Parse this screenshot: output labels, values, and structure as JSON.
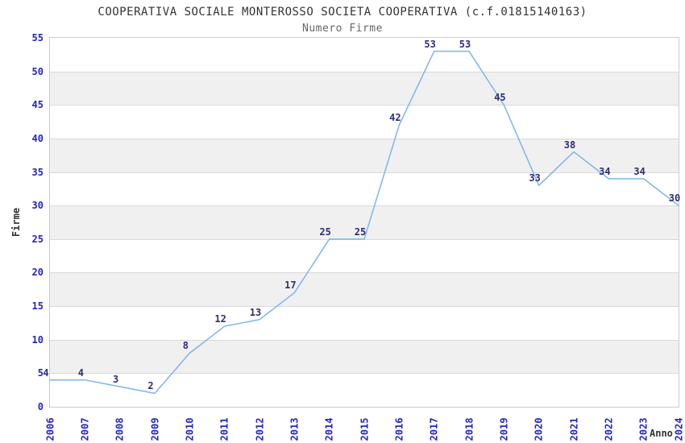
{
  "chart_data": {
    "type": "line",
    "title": "COOPERATIVA SOCIALE MONTEROSSO SOCIETA COOPERATIVA (c.f.01815140163)",
    "subtitle": "Numero Firme",
    "xlabel": "Anno",
    "ylabel": "Firme",
    "categories": [
      "2006",
      "2007",
      "2008",
      "2009",
      "2010",
      "2011",
      "2012",
      "2013",
      "2014",
      "2015",
      "2016",
      "2017",
      "2018",
      "2019",
      "2020",
      "2021",
      "2022",
      "2023",
      "2024"
    ],
    "values": [
      4,
      4,
      3,
      2,
      8,
      12,
      13,
      17,
      25,
      25,
      42,
      53,
      53,
      45,
      33,
      38,
      34,
      34,
      30
    ],
    "ylim": [
      0,
      55
    ],
    "yticks": [
      0,
      5,
      10,
      15,
      20,
      25,
      30,
      35,
      40,
      45,
      50,
      55
    ],
    "grid": "horizontal-bands",
    "legend": "none",
    "data_labels": "on",
    "colors": {
      "line": "#7cb5ec",
      "tick_label": "#2323cd",
      "data_label": "#2d2d78",
      "band": "#f0f0f0",
      "gridline": "#d9d9d9",
      "plot_border": "#cccccc",
      "title": "#333333",
      "subtitle": "#666666",
      "axis_title": "#333333"
    }
  }
}
